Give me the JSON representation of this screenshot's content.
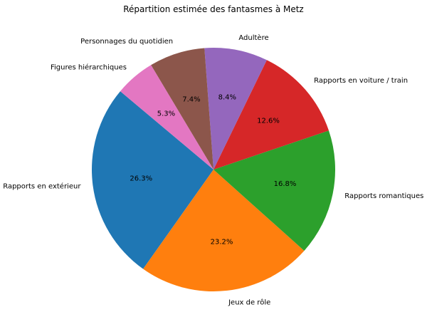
{
  "chart_data": {
    "type": "pie",
    "title": "Répartition estimée des fantasmes à Metz",
    "start_angle_deg": 140,
    "direction": "counterclockwise",
    "slices": [
      {
        "label": "Rapports en extérieur",
        "value": 26.3,
        "value_label": "26.3%",
        "color": "#1f77b4"
      },
      {
        "label": "Jeux de rôle",
        "value": 23.2,
        "value_label": "23.2%",
        "color": "#ff7f0e"
      },
      {
        "label": "Rapports romantiques",
        "value": 16.8,
        "value_label": "16.8%",
        "color": "#2ca02c"
      },
      {
        "label": "Rapports en voiture / train",
        "value": 12.6,
        "value_label": "12.6%",
        "color": "#d62728"
      },
      {
        "label": "Adultère",
        "value": 8.4,
        "value_label": "8.4%",
        "color": "#9467bd"
      },
      {
        "label": "Personnages du quotidien",
        "value": 7.4,
        "value_label": "7.4%",
        "color": "#8c564b"
      },
      {
        "label": "Figures hiérarchiques",
        "value": 5.3,
        "value_label": "5.3%",
        "color": "#e377c2"
      }
    ]
  }
}
